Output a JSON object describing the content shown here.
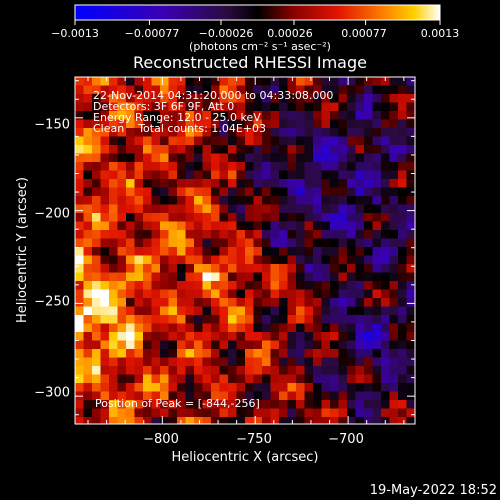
{
  "chart_data": {
    "type": "heatmap",
    "title": "Reconstructed RHESSI Image",
    "xlabel": "Heliocentric X (arcsec)",
    "ylabel": "Heliocentric Y (arcsec)",
    "xlim": [
      -847,
      -664
    ],
    "ylim": [
      -315,
      -128
    ],
    "x_ticks": [
      {
        "value": -800,
        "label": "−800"
      },
      {
        "value": -750,
        "label": "−750"
      },
      {
        "value": -700,
        "label": "−700"
      }
    ],
    "y_ticks": [
      {
        "value": -150,
        "label": "−150"
      },
      {
        "value": -200,
        "label": "−200"
      },
      {
        "value": -250,
        "label": "−250"
      },
      {
        "value": -300,
        "label": "−300"
      }
    ],
    "colorbar": {
      "range": [
        -0.0013,
        0.0013
      ],
      "ticks": [
        {
          "value": -0.0013,
          "label": "−0.0013"
        },
        {
          "value": -0.00077,
          "label": "−0.00077"
        },
        {
          "value": -0.00026,
          "label": "−0.00026"
        },
        {
          "value": 0.00026,
          "label": "0.00026"
        },
        {
          "value": 0.00077,
          "label": "0.00077"
        },
        {
          "value": 0.0013,
          "label": "0.0013"
        }
      ],
      "unit_label": "(photons cm⁻² s⁻¹ asec⁻²)"
    },
    "annotations": [
      "22-Nov-2014 04:31:20.000 to 04:33:08.000",
      "Detectors: 3F 6F 9F, Att 0",
      "Energy Range: 12.0 - 25.0 keV",
      "Clean    Total counts: 1.04E+03"
    ],
    "peak_label": "Position of Peak = [-844,-256]",
    "peak": {
      "x": -844,
      "y": -256
    }
  },
  "footer": {
    "timestamp": "19-May-2022 18:52"
  }
}
